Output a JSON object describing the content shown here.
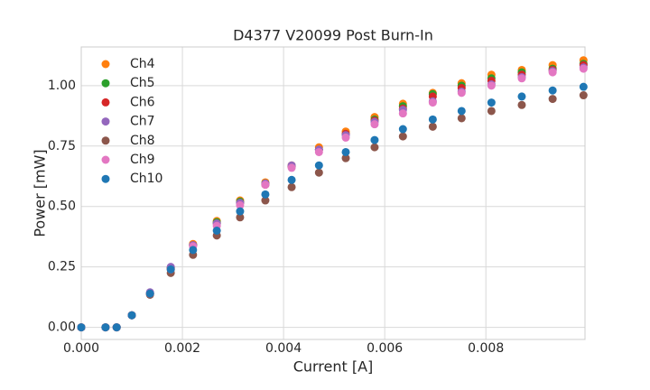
{
  "chart_data": {
    "type": "scatter",
    "title": "D4377 V20099 Post Burn-In",
    "x_label": "Current [A]",
    "y_label": "Power [mW]",
    "x": [
      0,
      0.00048,
      0.0007,
      0.001,
      0.00136,
      0.00177,
      0.00221,
      0.00268,
      0.00314,
      0.00364,
      0.00416,
      0.0047,
      0.00523,
      0.0058,
      0.00636,
      0.00695,
      0.00752,
      0.00811,
      0.00871,
      0.00932,
      0.00993
    ],
    "series": [
      {
        "name": "Ch4",
        "color": "#ff7f0e",
        "values": [
          0,
          0,
          0,
          0.05,
          0.14,
          0.24,
          0.345,
          0.44,
          0.525,
          0.6,
          0.67,
          0.745,
          0.81,
          0.87,
          0.925,
          0.97,
          1.01,
          1.045,
          1.065,
          1.085,
          1.105
        ]
      },
      {
        "name": "Ch5",
        "color": "#2ca02c",
        "values": [
          0,
          0,
          0,
          0.05,
          0.14,
          0.245,
          0.34,
          0.435,
          0.52,
          0.595,
          0.665,
          0.735,
          0.8,
          0.86,
          0.915,
          0.965,
          1.0,
          1.03,
          1.055,
          1.07,
          1.09
        ]
      },
      {
        "name": "Ch6",
        "color": "#d62728",
        "values": [
          0,
          0,
          0,
          0.05,
          0.14,
          0.245,
          0.34,
          0.43,
          0.515,
          0.59,
          0.665,
          0.735,
          0.8,
          0.855,
          0.905,
          0.955,
          0.99,
          1.02,
          1.045,
          1.065,
          1.085
        ]
      },
      {
        "name": "Ch7",
        "color": "#9467bd",
        "values": [
          0,
          0,
          0,
          0.05,
          0.145,
          0.25,
          0.34,
          0.43,
          0.515,
          0.595,
          0.67,
          0.735,
          0.795,
          0.85,
          0.9,
          0.935,
          0.975,
          1.005,
          1.035,
          1.06,
          1.075
        ]
      },
      {
        "name": "Ch8",
        "color": "#8c564b",
        "values": [
          0,
          0,
          0,
          0.05,
          0.135,
          0.225,
          0.3,
          0.38,
          0.455,
          0.525,
          0.58,
          0.64,
          0.7,
          0.745,
          0.79,
          0.83,
          0.865,
          0.895,
          0.92,
          0.945,
          0.96
        ]
      },
      {
        "name": "Ch9",
        "color": "#e377c2",
        "values": [
          0,
          0,
          0,
          0.05,
          0.14,
          0.24,
          0.335,
          0.42,
          0.505,
          0.59,
          0.66,
          0.725,
          0.785,
          0.84,
          0.885,
          0.93,
          0.97,
          1.0,
          1.03,
          1.055,
          1.07
        ]
      },
      {
        "name": "Ch10",
        "color": "#1f77b4",
        "values": [
          0,
          0,
          0,
          0.05,
          0.14,
          0.24,
          0.32,
          0.4,
          0.48,
          0.55,
          0.61,
          0.67,
          0.725,
          0.775,
          0.82,
          0.86,
          0.895,
          0.93,
          0.955,
          0.98,
          0.995
        ]
      }
    ],
    "xlim": [
      0,
      0.00996
    ],
    "ylim": [
      -0.05,
      1.16
    ],
    "xticks": [
      {
        "value": 0,
        "label": "0.000"
      },
      {
        "value": 0.002,
        "label": "0.002"
      },
      {
        "value": 0.004,
        "label": "0.004"
      },
      {
        "value": 0.006,
        "label": "0.006"
      },
      {
        "value": 0.008,
        "label": "0.008"
      }
    ],
    "yticks": [
      {
        "value": 0,
        "label": "0.00"
      },
      {
        "value": 0.25,
        "label": "0.25"
      },
      {
        "value": 0.5,
        "label": "0.50"
      },
      {
        "value": 0.75,
        "label": "0.75"
      },
      {
        "value": 1,
        "label": "1.00"
      }
    ],
    "grid": true,
    "legend": "upper left"
  }
}
